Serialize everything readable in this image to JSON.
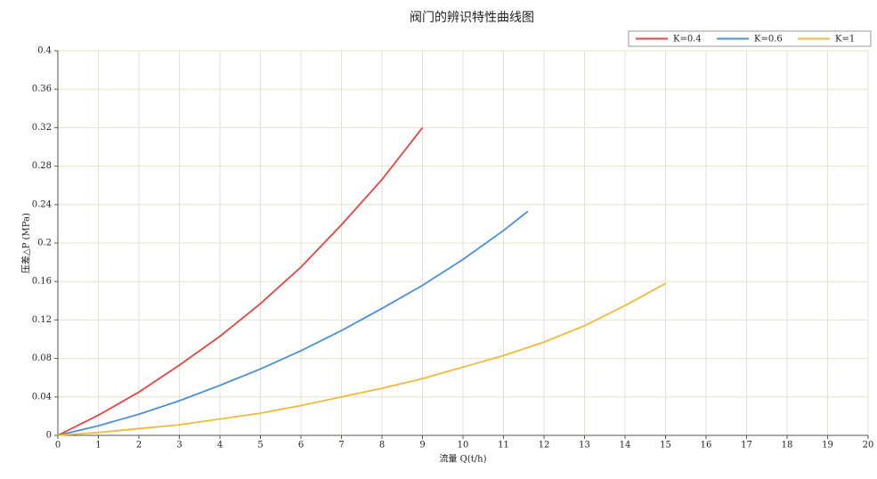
{
  "chart_data": {
    "type": "line",
    "title": "阀门的辨识特性曲线图",
    "x_label": "流量 Q(t/h)",
    "y_label": "压差△P (MPa)",
    "xlim": [
      0,
      20
    ],
    "xticks": [
      0,
      1,
      2,
      3,
      4,
      5,
      6,
      7,
      8,
      9,
      10,
      11,
      12,
      13,
      14,
      15,
      16,
      17,
      18,
      19,
      20
    ],
    "ylim": [
      0,
      0.4
    ],
    "yticks": [
      0,
      0.04,
      0.08,
      0.12,
      0.16,
      0.2,
      0.24,
      0.28,
      0.32,
      0.36,
      0.4
    ],
    "grid": true,
    "legend": "top-right",
    "series": [
      {
        "name": "K=0.4",
        "color": "#e0453f",
        "x": [
          0,
          1,
          2,
          3,
          4,
          5,
          6,
          7,
          8,
          9
        ],
        "values": [
          0,
          0.021,
          0.045,
          0.073,
          0.103,
          0.137,
          0.175,
          0.219,
          0.266,
          0.32
        ]
      },
      {
        "name": "K=0.6",
        "color": "#4a90d9",
        "x": [
          0,
          1,
          2,
          3,
          4,
          5,
          6,
          7,
          8,
          9,
          10,
          11,
          11.6
        ],
        "values": [
          0,
          0.01,
          0.022,
          0.036,
          0.052,
          0.069,
          0.088,
          0.109,
          0.132,
          0.156,
          0.183,
          0.213,
          0.233
        ]
      },
      {
        "name": "K=1",
        "color": "#f0b93a",
        "x": [
          0,
          1,
          2,
          3,
          4,
          5,
          6,
          7,
          8,
          9,
          10,
          11,
          12,
          13,
          14,
          15
        ],
        "values": [
          0,
          0.003,
          0.007,
          0.011,
          0.017,
          0.023,
          0.031,
          0.04,
          0.049,
          0.059,
          0.071,
          0.083,
          0.097,
          0.114,
          0.135,
          0.158
        ]
      }
    ]
  }
}
